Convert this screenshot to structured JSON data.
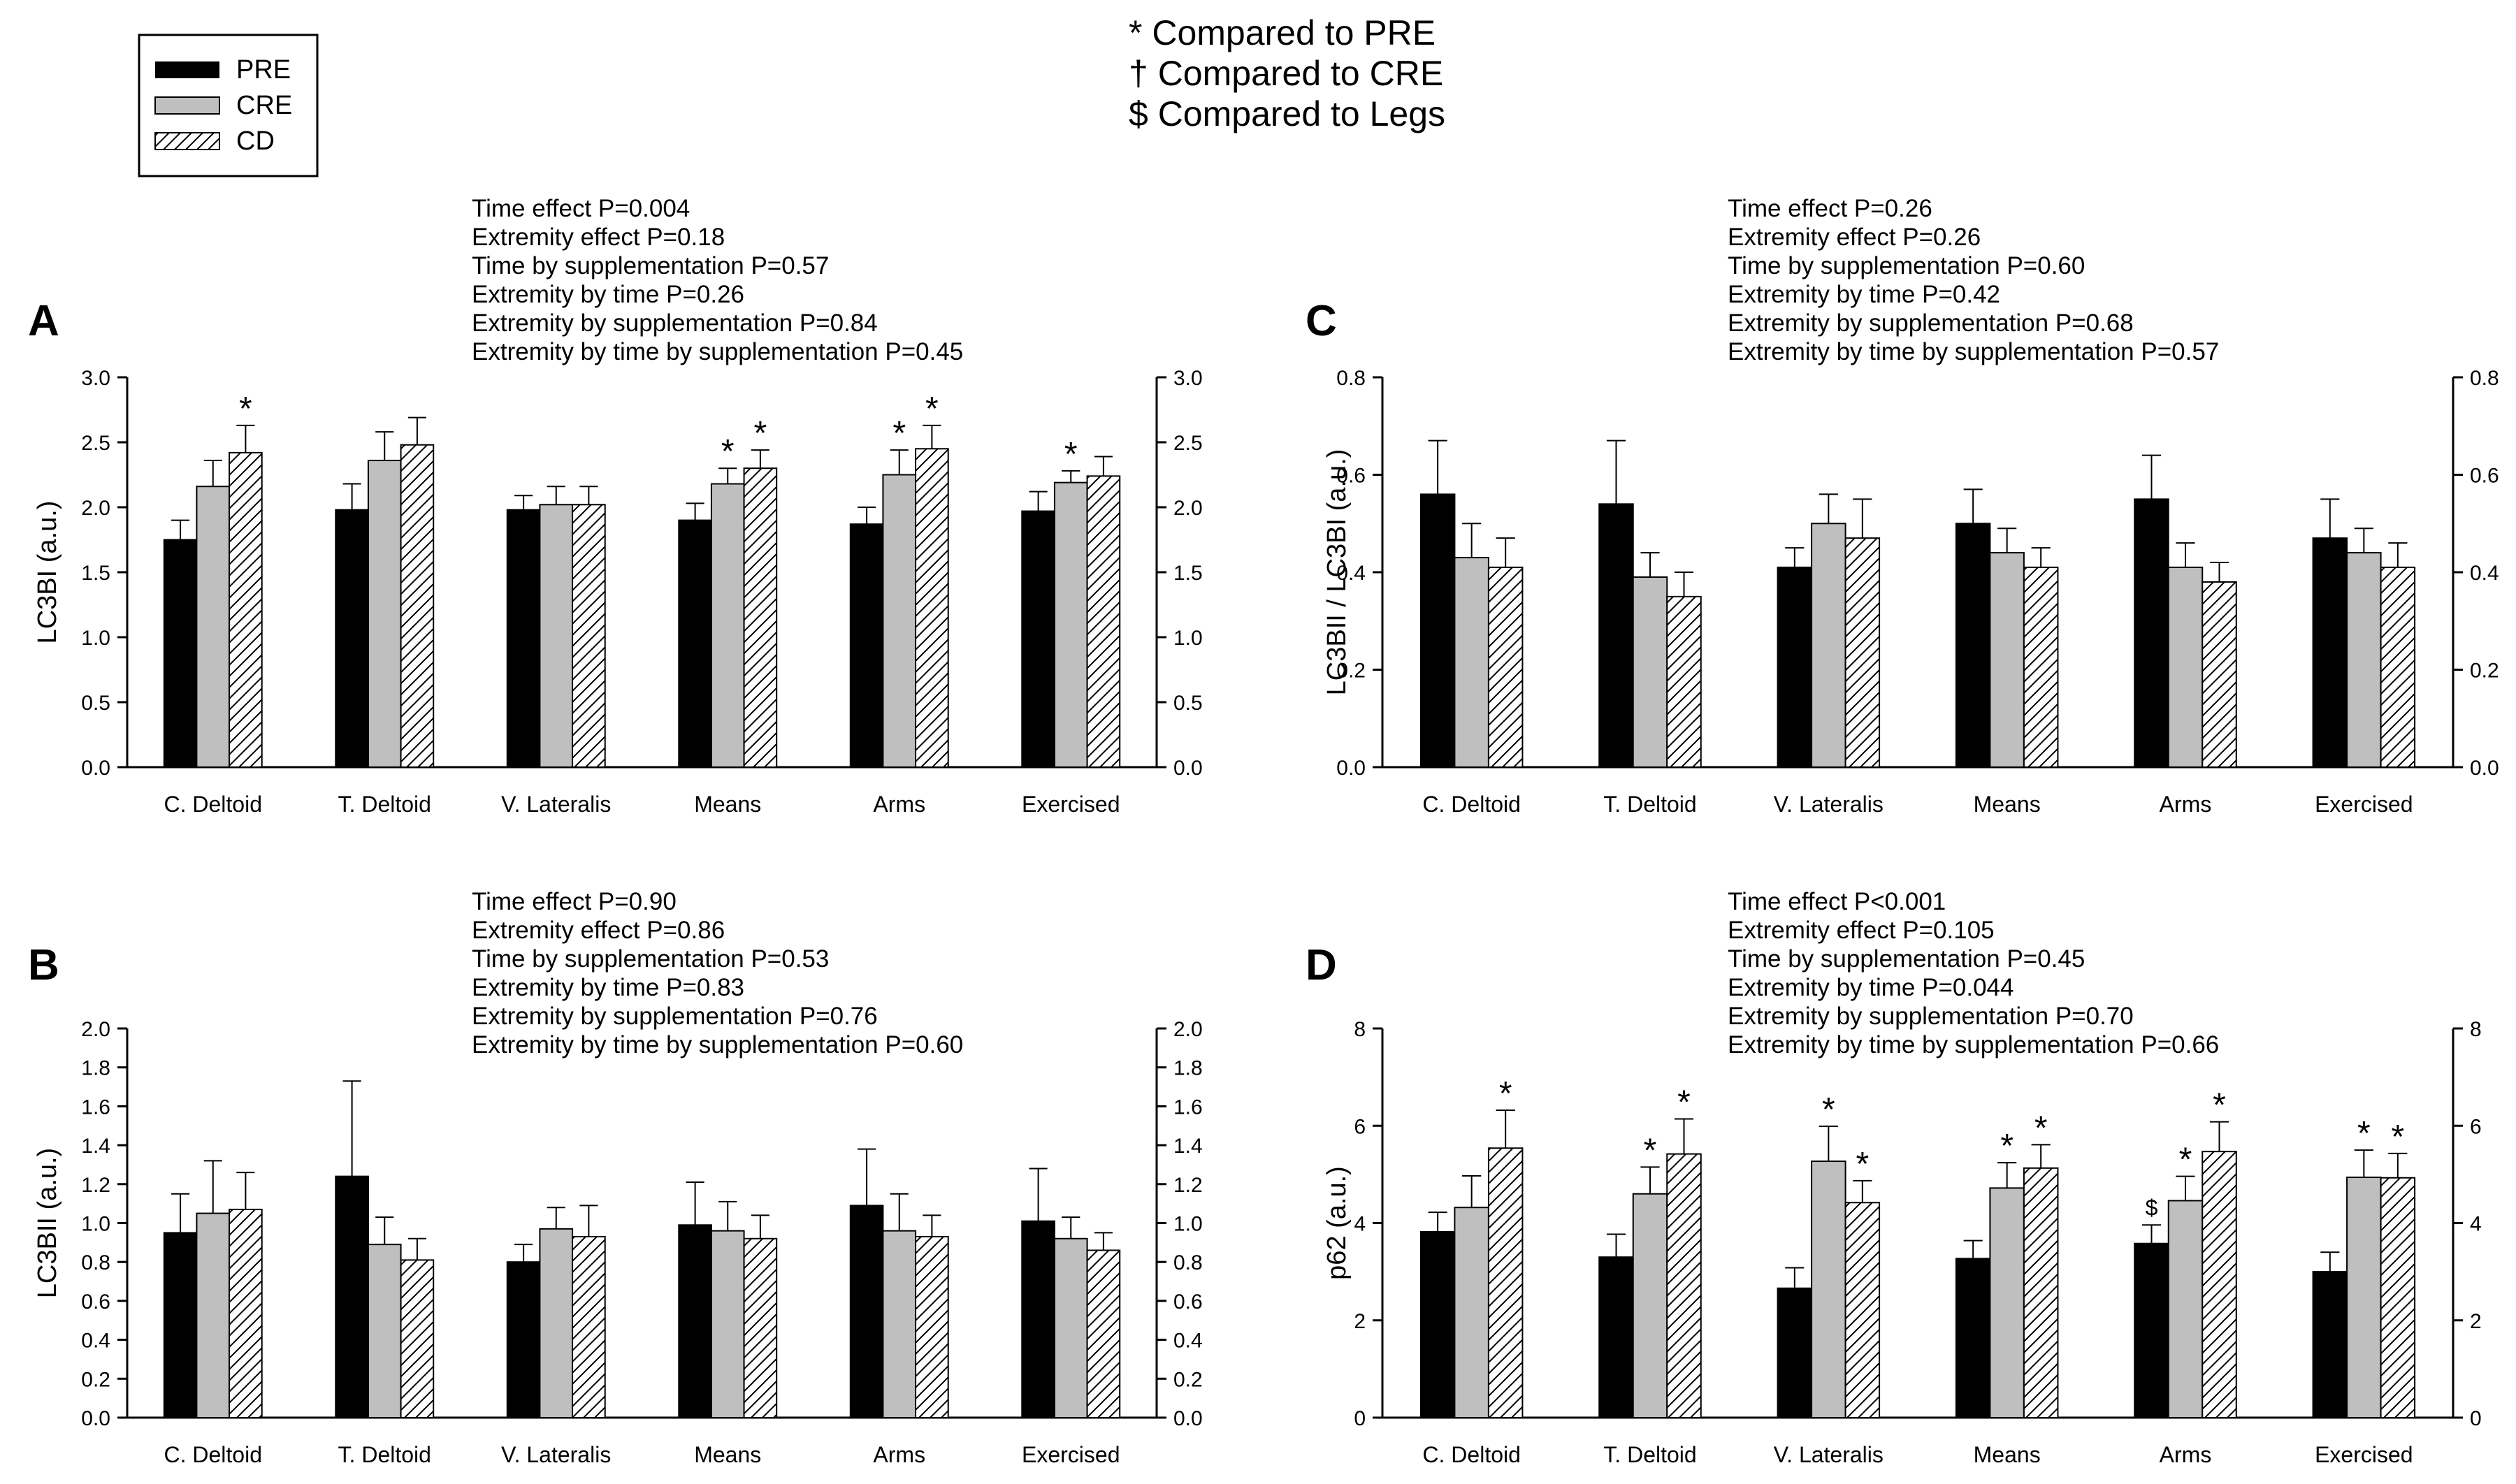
{
  "legend": {
    "items": [
      {
        "label": "PRE",
        "fill": "solid-black"
      },
      {
        "label": "CRE",
        "fill": "solid-gray"
      },
      {
        "label": "CD",
        "fill": "diagonal-hatch"
      }
    ]
  },
  "notes": [
    "* Compared to PRE",
    "† Compared to CRE",
    "$ Compared to Legs"
  ],
  "colors": {
    "pre": "#000000",
    "cre": "#bfbfbf",
    "cd_bg": "#ffffff",
    "axis": "#000000"
  },
  "chart_data": [
    {
      "panel": "A",
      "type": "bar",
      "ylabel": "LC3BI (a.u.)",
      "ylim": [
        0,
        3.0
      ],
      "yticks": [
        "0.0",
        "0.5",
        "1.0",
        "1.5",
        "2.0",
        "2.5",
        "3.0"
      ],
      "categories": [
        "C. Deltoid",
        "T. Deltoid",
        "V. Lateralis",
        "Means",
        "Arms",
        "Exercised"
      ],
      "stats": [
        "Time effect P=0.004",
        "Extremity effect P=0.18",
        "Time by supplementation P=0.57",
        "Extremity by time P=0.26",
        "Extremity by supplementation P=0.84",
        "Extremity by time by supplementation P=0.45"
      ],
      "series": [
        {
          "name": "PRE",
          "values": [
            1.75,
            1.98,
            1.98,
            1.9,
            1.87,
            1.97
          ],
          "errors": [
            0.15,
            0.2,
            0.11,
            0.13,
            0.13,
            0.15
          ],
          "marks": [
            "",
            "",
            "",
            "",
            "",
            ""
          ]
        },
        {
          "name": "CRE",
          "values": [
            2.16,
            2.36,
            2.02,
            2.18,
            2.25,
            2.19
          ],
          "errors": [
            0.2,
            0.22,
            0.14,
            0.12,
            0.19,
            0.09
          ],
          "marks": [
            "",
            "",
            "",
            "*",
            "*",
            "*"
          ]
        },
        {
          "name": "CD",
          "values": [
            2.42,
            2.48,
            2.02,
            2.3,
            2.45,
            2.24
          ],
          "errors": [
            0.21,
            0.21,
            0.14,
            0.14,
            0.18,
            0.15
          ],
          "marks": [
            "*",
            "",
            "",
            "*",
            "*",
            ""
          ]
        }
      ]
    },
    {
      "panel": "C",
      "type": "bar",
      "ylabel": "LC3BII / LC3BI (a.u.)",
      "ylim": [
        0,
        0.8
      ],
      "yticks": [
        "0.0",
        "0.2",
        "0.4",
        "0.6",
        "0.8"
      ],
      "categories": [
        "C. Deltoid",
        "T. Deltoid",
        "V. Lateralis",
        "Means",
        "Arms",
        "Exercised"
      ],
      "stats": [
        "Time effect P=0.26",
        "Extremity effect P=0.26",
        "Time by supplementation P=0.60",
        "Extremity by time P=0.42",
        "Extremity by supplementation P=0.68",
        "Extremity by time by supplementation P=0.57"
      ],
      "series": [
        {
          "name": "PRE",
          "values": [
            0.56,
            0.54,
            0.41,
            0.5,
            0.55,
            0.47
          ],
          "errors": [
            0.11,
            0.13,
            0.04,
            0.07,
            0.09,
            0.08
          ],
          "marks": [
            "",
            "",
            "",
            "",
            "",
            ""
          ]
        },
        {
          "name": "CRE",
          "values": [
            0.43,
            0.39,
            0.5,
            0.44,
            0.41,
            0.44
          ],
          "errors": [
            0.07,
            0.05,
            0.06,
            0.05,
            0.05,
            0.05
          ],
          "marks": [
            "",
            "",
            "",
            "",
            "",
            ""
          ]
        },
        {
          "name": "CD",
          "values": [
            0.41,
            0.35,
            0.47,
            0.41,
            0.38,
            0.41
          ],
          "errors": [
            0.06,
            0.05,
            0.08,
            0.04,
            0.04,
            0.05
          ],
          "marks": [
            "",
            "",
            "",
            "",
            "",
            ""
          ]
        }
      ]
    },
    {
      "panel": "B",
      "type": "bar",
      "ylabel": "LC3BII (a.u.)",
      "ylim": [
        0,
        2.0
      ],
      "yticks": [
        "0.0",
        "0.2",
        "0.4",
        "0.6",
        "0.8",
        "1.0",
        "1.2",
        "1.4",
        "1.6",
        "1.8",
        "2.0"
      ],
      "categories": [
        "C. Deltoid",
        "T. Deltoid",
        "V. Lateralis",
        "Means",
        "Arms",
        "Exercised"
      ],
      "stats": [
        "Time effect P=0.90",
        "Extremity effect P=0.86",
        "Time by supplementation P=0.53",
        "Extremity by time P=0.83",
        "Extremity by supplementation P=0.76",
        "Extremity by time by supplementation P=0.60"
      ],
      "series": [
        {
          "name": "PRE",
          "values": [
            0.95,
            1.24,
            0.8,
            0.99,
            1.09,
            1.01
          ],
          "errors": [
            0.2,
            0.49,
            0.09,
            0.22,
            0.29,
            0.27
          ],
          "marks": [
            "",
            "",
            "",
            "",
            "",
            ""
          ]
        },
        {
          "name": "CRE",
          "values": [
            1.05,
            0.89,
            0.97,
            0.96,
            0.96,
            0.92
          ],
          "errors": [
            0.27,
            0.14,
            0.11,
            0.15,
            0.19,
            0.11
          ],
          "marks": [
            "",
            "",
            "",
            "",
            "",
            ""
          ]
        },
        {
          "name": "CD",
          "values": [
            1.07,
            0.81,
            0.93,
            0.92,
            0.93,
            0.86
          ],
          "errors": [
            0.19,
            0.11,
            0.16,
            0.12,
            0.11,
            0.09
          ],
          "marks": [
            "",
            "",
            "",
            "",
            "",
            ""
          ]
        }
      ]
    },
    {
      "panel": "D",
      "type": "bar",
      "ylabel": "p62 (a.u.)",
      "ylim": [
        0,
        8
      ],
      "yticks": [
        "0",
        "2",
        "4",
        "6",
        "8"
      ],
      "categories": [
        "C. Deltoid",
        "T. Deltoid",
        "V. Lateralis",
        "Means",
        "Arms",
        "Exercised"
      ],
      "stats": [
        "Time effect P<0.001",
        "Extremity effect P=0.105",
        "Time by supplementation P=0.45",
        "Extremity by time P=0.044",
        "Extremity by supplementation P=0.70",
        "Extremity by time by supplementation P=0.66"
      ],
      "series": [
        {
          "name": "PRE",
          "values": [
            3.82,
            3.3,
            2.66,
            3.27,
            3.58,
            3.0
          ],
          "errors": [
            0.4,
            0.47,
            0.42,
            0.37,
            0.38,
            0.4
          ],
          "marks": [
            "",
            "",
            "",
            "",
            "$",
            ""
          ]
        },
        {
          "name": "CRE",
          "values": [
            4.32,
            4.6,
            5.27,
            4.72,
            4.46,
            4.94
          ],
          "errors": [
            0.65,
            0.55,
            0.72,
            0.52,
            0.5,
            0.56
          ],
          "marks": [
            "",
            "*",
            "*",
            "*",
            "*",
            "*"
          ]
        },
        {
          "name": "CD",
          "values": [
            5.54,
            5.42,
            4.42,
            5.13,
            5.47,
            4.93
          ],
          "errors": [
            0.78,
            0.72,
            0.45,
            0.48,
            0.61,
            0.5
          ],
          "marks": [
            "*",
            "*",
            "*",
            "*",
            "*",
            "*"
          ]
        }
      ]
    }
  ]
}
